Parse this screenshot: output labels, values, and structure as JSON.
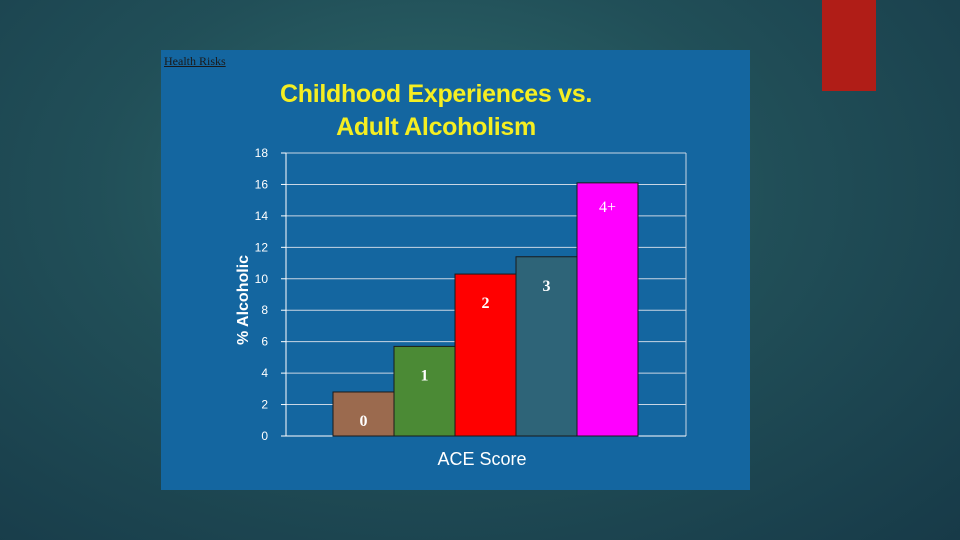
{
  "colors": {
    "background": "#1f4b55",
    "accent_tab": "#b01d17",
    "chart_background": "#1466a0",
    "title": "#f5ee22"
  },
  "caption": "Health Risks",
  "chart_data": {
    "type": "bar",
    "title_lines": [
      "Childhood Experiences vs.",
      "Adult Alcoholism"
    ],
    "xlabel": "ACE Score",
    "ylabel": "% Alcoholic",
    "ylim": [
      0,
      18
    ],
    "yticks": [
      0,
      2,
      4,
      6,
      8,
      10,
      12,
      14,
      16,
      18
    ],
    "grid": true,
    "categories": [
      "0",
      "1",
      "2",
      "3",
      "4+"
    ],
    "values": [
      2.8,
      5.7,
      10.3,
      11.4,
      16.1
    ],
    "bar_colors": [
      "#9b6a4e",
      "#4b8a35",
      "#ff0000",
      "#2e6478",
      "#ff00ff"
    ],
    "label_colors": [
      "#ffffff",
      "#ffffff",
      "#ffffff",
      "#ffffff",
      "#ffffff"
    ]
  }
}
